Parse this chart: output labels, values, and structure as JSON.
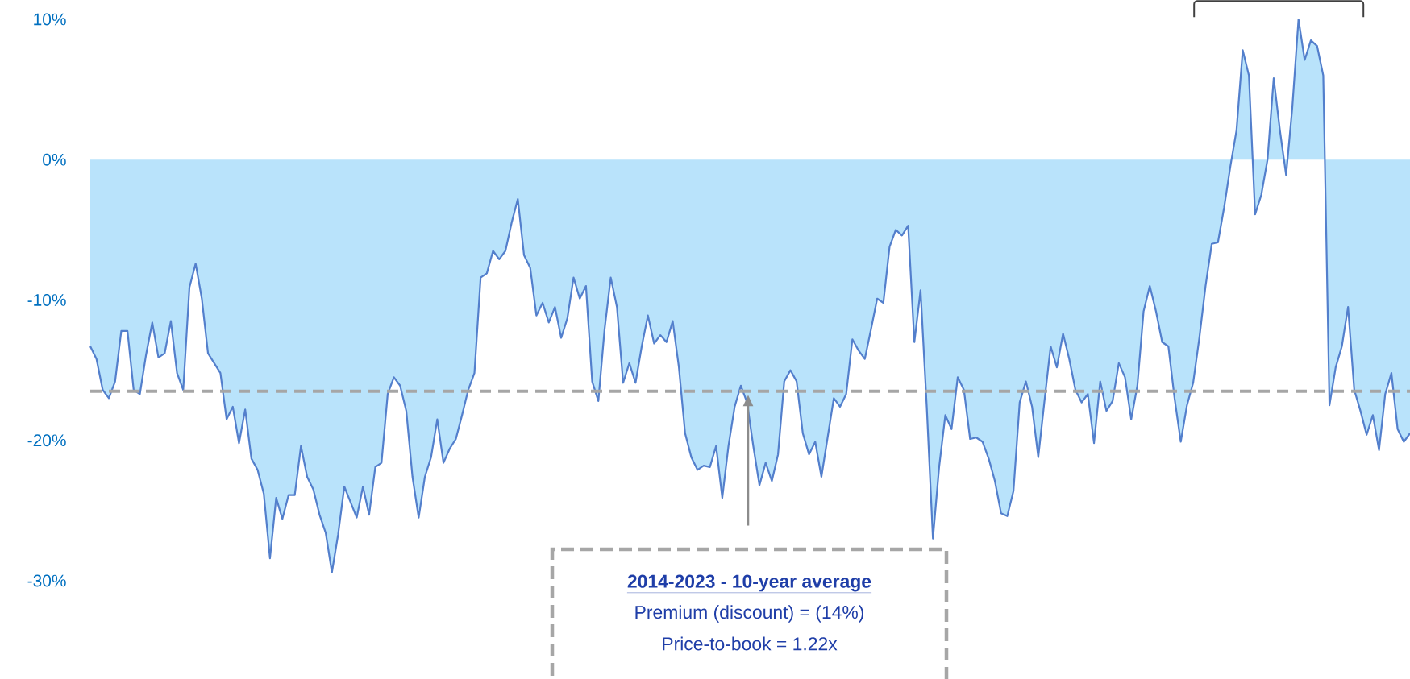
{
  "chart_data": {
    "type": "area",
    "categories": [
      null,
      null,
      null,
      null,
      null,
      null,
      null,
      null,
      null,
      null,
      null,
      null,
      null,
      null,
      null,
      null,
      null,
      null,
      null,
      null,
      null,
      null,
      null,
      null,
      null,
      null,
      null,
      null,
      null,
      null,
      null,
      null,
      null,
      null,
      null,
      null,
      null,
      null,
      null,
      null,
      null,
      null,
      null,
      null,
      null,
      null,
      null,
      null,
      null,
      null,
      null,
      null,
      null,
      null,
      null,
      null,
      null,
      null,
      null,
      null,
      null,
      null,
      null,
      null,
      null,
      null,
      null,
      null,
      null,
      null,
      null,
      null,
      null,
      null,
      null,
      null,
      null,
      null,
      null,
      null,
      null,
      null,
      null,
      null,
      null,
      null,
      null,
      null,
      null,
      null,
      null,
      null,
      null,
      null,
      null,
      null,
      null,
      null,
      null,
      null,
      null,
      null,
      null,
      null,
      null,
      null,
      null,
      null,
      null,
      null,
      null,
      null,
      null,
      null,
      null,
      null,
      null,
      null,
      null,
      null,
      null,
      null,
      null,
      null,
      null,
      null,
      null,
      null,
      null,
      null,
      null,
      null,
      null,
      null,
      null,
      null,
      null,
      null,
      null,
      null,
      null,
      null,
      null,
      null,
      null,
      null,
      null,
      null,
      null,
      null,
      null,
      null,
      null,
      null,
      null,
      null,
      null,
      null,
      null,
      null,
      null,
      null,
      null,
      null,
      null,
      null,
      null,
      null,
      null,
      null,
      null,
      null,
      null,
      null,
      null,
      null,
      null,
      null,
      null,
      null,
      null,
      null,
      null,
      null,
      null,
      null,
      null,
      null,
      null,
      null,
      null,
      null,
      null,
      null,
      null,
      null,
      null,
      null,
      null,
      null,
      null,
      null,
      null,
      null,
      null,
      null,
      null,
      null,
      null,
      null,
      null,
      null,
      null,
      null
    ],
    "series": [
      {
        "color": "#b9e3fb",
        "values": [
          -13.3,
          -14.2,
          -16.4,
          -17.0,
          -15.8,
          -12.2,
          -12.2,
          -16.4,
          -16.7,
          -13.9,
          -11.6,
          -14.1,
          -13.8,
          -11.5,
          -15.2,
          -16.4,
          -9.1,
          -7.4,
          -9.9,
          -13.8,
          -14.5,
          -15.2,
          -18.5,
          -17.6,
          -20.2,
          -17.8,
          -21.3,
          -22.1,
          -23.8,
          -28.4,
          -24.1,
          -25.6,
          -23.9,
          -23.9,
          -20.4,
          -22.6,
          -23.5,
          -25.3,
          -26.6,
          -29.4,
          -26.7,
          -23.3,
          -24.4,
          -25.5,
          -23.3,
          -25.3,
          -21.9,
          -21.6,
          -16.7,
          -15.5,
          -16.1,
          -17.9,
          -22.6,
          -25.5,
          -22.6,
          -21.2,
          -18.5,
          -21.6,
          -20.6,
          -19.9,
          -18.2,
          -16.4,
          -15.2,
          -8.4,
          -8.1,
          -6.5,
          -7.1,
          -6.5,
          -4.5,
          -2.8,
          -6.8,
          -7.7,
          -11.1,
          -10.2,
          -11.6,
          -10.5,
          -12.7,
          -11.3,
          -8.4,
          -9.9,
          -9.0,
          -15.8,
          -17.2,
          -12.1,
          -8.4,
          -10.5,
          -15.9,
          -14.5,
          -15.9,
          -13.3,
          -11.1,
          -13.1,
          -12.5,
          -13.0,
          -11.5,
          -14.8,
          -19.5,
          -21.2,
          -22.1,
          -21.8,
          -21.9,
          -20.4,
          -24.1,
          -20.4,
          -17.6,
          -16.1,
          -17.3,
          -20.4,
          -23.2,
          -21.6,
          -22.9,
          -21.0,
          -15.8,
          -15.0,
          -15.8,
          -19.5,
          -21.0,
          -20.1,
          -22.6,
          -19.8,
          -17.0,
          -17.6,
          -16.7,
          -12.8,
          -13.6,
          -14.2,
          -12.1,
          -9.9,
          -10.2,
          -6.2,
          -5.0,
          -5.4,
          -4.7,
          -13.0,
          -9.3,
          -17.6,
          -27.0,
          -21.9,
          -18.2,
          -19.2,
          -15.5,
          -16.4,
          -19.9,
          -19.8,
          -20.1,
          -21.3,
          -22.9,
          -25.2,
          -25.4,
          -23.6,
          -17.3,
          -15.8,
          -17.6,
          -21.2,
          -17.2,
          -13.3,
          -14.8,
          -12.4,
          -14.2,
          -16.4,
          -17.3,
          -16.7,
          -20.2,
          -15.8,
          -17.9,
          -17.2,
          -14.5,
          -15.5,
          -18.5,
          -16.1,
          -10.8,
          -9.0,
          -10.8,
          -13.0,
          -13.3,
          -17.0,
          -20.1,
          -17.5,
          -15.9,
          -12.7,
          -9.0,
          -6.0,
          -5.9,
          -3.4,
          -0.5,
          2.1,
          7.8,
          6.0,
          -3.9,
          -2.5,
          0,
          5.8,
          2.1,
          -1.1,
          3.7,
          10.0,
          7.1,
          8.5,
          8.1,
          6.0,
          -17.5,
          -14.8,
          -13.3,
          -10.5,
          -16.4,
          -17.9,
          -19.6,
          -18.2,
          -20.7,
          -16.7,
          -15.2,
          -19.2,
          -20.1,
          -19.5
        ]
      }
    ],
    "ylim": [
      -30,
      10
    ],
    "yticks": [
      {
        "value": -30,
        "label": "-30%"
      },
      {
        "value": -20,
        "label": "-20%"
      },
      {
        "value": -10,
        "label": "-10%"
      },
      {
        "value": 0,
        "label": "0%"
      },
      {
        "value": 10,
        "label": "10%"
      }
    ],
    "ref_lines": [
      {
        "axis": "y",
        "value": -16.5,
        "color": "#a6a6a6",
        "line_style": "dashed"
      }
    ],
    "annotations": [
      "2014-2023 - 10-year average",
      "Premium (discount) = (14%)",
      "Price-to-book = 1.22x"
    ]
  }
}
